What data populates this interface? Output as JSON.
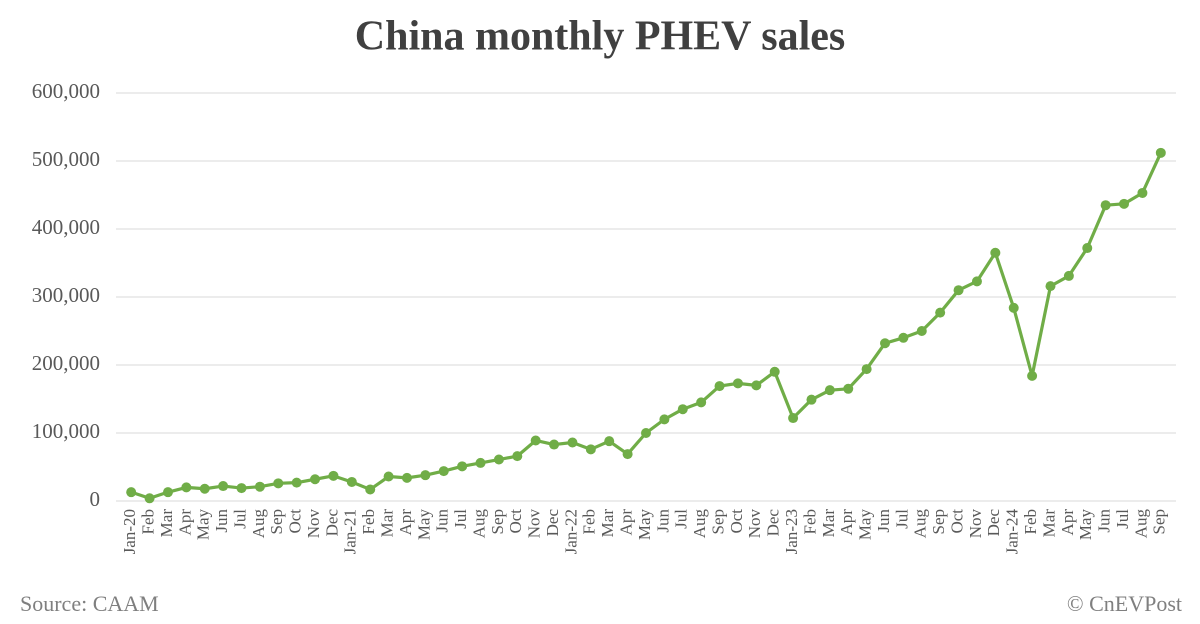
{
  "chart_data": {
    "type": "line",
    "title": "China monthly PHEV sales",
    "source": "Source: CAAM",
    "credit": "© CnEVPost",
    "categories": [
      "Jan-20",
      "Feb",
      "Mar",
      "Apr",
      "May",
      "Jun",
      "Jul",
      "Aug",
      "Sep",
      "Oct",
      "Nov",
      "Dec",
      "Jan-21",
      "Feb",
      "Mar",
      "Apr",
      "May",
      "Jun",
      "Jul",
      "Aug",
      "Sep",
      "Oct",
      "Nov",
      "Dec",
      "Jan-22",
      "Feb",
      "Mar",
      "Apr",
      "May",
      "Jun",
      "Jul",
      "Aug",
      "Sep",
      "Oct",
      "Nov",
      "Dec",
      "Jan-23",
      "Feb",
      "Mar",
      "Apr",
      "May",
      "Jun",
      "Jul",
      "Aug",
      "Sep",
      "Oct",
      "Nov",
      "Dec",
      "Jan-24",
      "Feb",
      "Mar",
      "Apr",
      "May",
      "Jun",
      "Jul",
      "Aug",
      "Sep"
    ],
    "series": [
      {
        "name": "PHEV sales",
        "color": "#70ad47",
        "values": [
          13000,
          4000,
          13000,
          20000,
          18000,
          22000,
          19000,
          21000,
          26000,
          27000,
          32000,
          37000,
          28000,
          17000,
          36000,
          34000,
          38000,
          44000,
          51000,
          56000,
          61000,
          66000,
          89000,
          83000,
          86000,
          76000,
          88000,
          69000,
          100000,
          120000,
          135000,
          145000,
          169000,
          173000,
          170000,
          190000,
          122000,
          149000,
          163000,
          165000,
          194000,
          232000,
          240000,
          250000,
          277000,
          310000,
          323000,
          365000,
          284000,
          184000,
          316000,
          331000,
          372000,
          435000,
          437000,
          453000,
          512000
        ]
      }
    ],
    "ylim": [
      0,
      600000
    ],
    "yticks": [
      {
        "value": 0,
        "label": "0"
      },
      {
        "value": 100000,
        "label": "100,000"
      },
      {
        "value": 200000,
        "label": "200,000"
      },
      {
        "value": 300000,
        "label": "300,000"
      },
      {
        "value": 400000,
        "label": "400,000"
      },
      {
        "value": 500000,
        "label": "500,000"
      },
      {
        "value": 600000,
        "label": "600,000"
      }
    ],
    "grid": true
  }
}
